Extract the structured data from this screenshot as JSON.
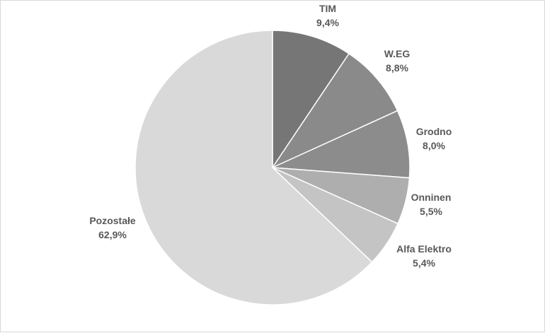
{
  "chart_data": {
    "type": "pie",
    "slices": [
      {
        "label": "TIM",
        "value": 9.4,
        "value_label": "9,4%",
        "color": "#767676"
      },
      {
        "label": "W.EG",
        "value": 8.8,
        "value_label": "8,8%",
        "color": "#8a8a8a"
      },
      {
        "label": "Grodno",
        "value": 8.0,
        "value_label": "8,0%",
        "color": "#8c8c8c"
      },
      {
        "label": "Onninen",
        "value": 5.5,
        "value_label": "5,5%",
        "color": "#aeaeae"
      },
      {
        "label": "Alfa Elektro",
        "value": 5.4,
        "value_label": "5,4%",
        "color": "#c4c4c4"
      },
      {
        "label": "Pozostałe",
        "value": 62.9,
        "value_label": "62,9%",
        "color": "#d9d9d9"
      }
    ],
    "start_angle": "12 o'clock",
    "direction": "clockwise",
    "legend": "none",
    "data_labels": "outside"
  }
}
